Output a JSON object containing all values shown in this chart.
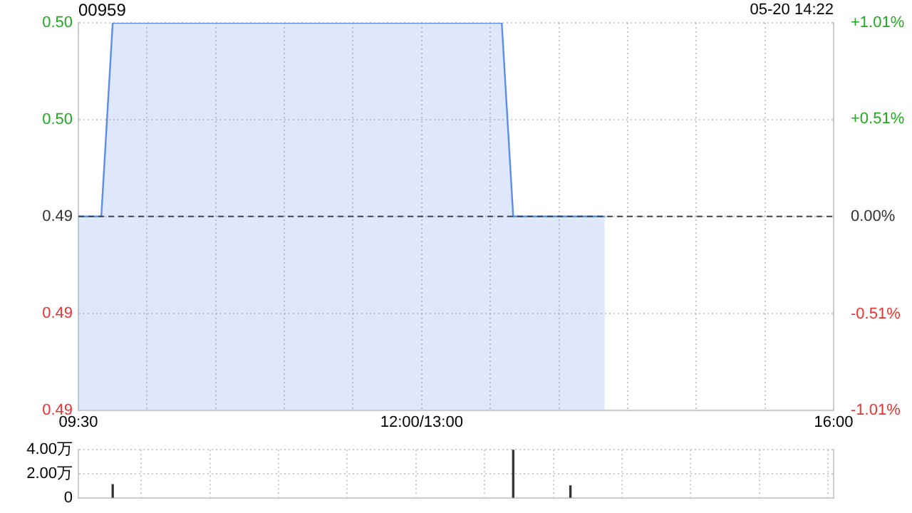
{
  "chart_data": [
    {
      "type": "area",
      "title": "00959",
      "annotations": [
        "05-20 14:22"
      ],
      "categories": [
        "09:30",
        null,
        null,
        null,
        null,
        null,
        null,
        null,
        null,
        null,
        null,
        null,
        null,
        null,
        null,
        null,
        null,
        null,
        null,
        null,
        null,
        null,
        null,
        null,
        null,
        null,
        null,
        null,
        null,
        null,
        "12:00/13:00",
        null,
        null,
        null,
        null,
        null,
        null,
        null,
        null,
        null,
        null,
        null,
        null,
        null,
        null,
        null,
        null,
        null,
        null,
        null,
        null,
        null,
        null,
        null,
        null,
        null,
        null,
        null,
        null,
        null,
        null,
        null,
        null,
        null,
        null,
        null,
        "16:00"
      ],
      "series": [
        {
          "color": "#5b8ee6",
          "values": [
            0.495,
            0.495,
            0.495,
            0.5,
            0.5,
            0.5,
            0.5,
            0.5,
            0.5,
            0.5,
            0.5,
            0.5,
            0.5,
            0.5,
            0.5,
            0.5,
            0.5,
            0.5,
            0.5,
            0.5,
            0.5,
            0.5,
            0.5,
            0.5,
            0.5,
            0.5,
            0.5,
            0.5,
            0.5,
            0.5,
            0.5,
            0.5,
            0.5,
            0.5,
            0.5,
            0.5,
            0.5,
            0.5,
            0.495,
            0.495,
            0.495,
            0.495,
            0.495,
            0.495,
            0.495,
            0.495,
            0.495,
            null,
            null,
            null,
            null,
            null,
            null,
            null,
            null,
            null,
            null,
            null,
            null,
            null,
            null,
            null,
            null,
            null,
            null,
            null,
            null
          ]
        }
      ],
      "ylim": [
        0.49,
        0.5
      ],
      "yticks": [
        {
          "value": 0.49,
          "label": "0.49"
        },
        {
          "value": 0.4925,
          "label": "0.49"
        },
        {
          "value": 0.495,
          "label": "0.49"
        },
        {
          "value": 0.4975,
          "label": "0.50"
        },
        {
          "value": 0.5,
          "label": "0.50"
        }
      ],
      "y2lim": [
        -1.01,
        1.01
      ],
      "y2ticks": [
        {
          "value": -1.01,
          "label": "-1.01%"
        },
        {
          "value": -0.51,
          "label": "-0.51%"
        },
        {
          "value": 0,
          "label": "0.00%"
        },
        {
          "value": 0.51,
          "label": "+0.51%"
        },
        {
          "value": 1.01,
          "label": "+1.01%"
        }
      ],
      "ref_lines": [
        {
          "axis": "y",
          "value": 0.495,
          "color": "#444444",
          "line_style": "dashed"
        }
      ],
      "grid": true,
      "legend": false
    },
    {
      "type": "bar",
      "categories": [
        null,
        null,
        null,
        null,
        null,
        null,
        null,
        null,
        null,
        null,
        null,
        null,
        null,
        null,
        null,
        null,
        null,
        null,
        null,
        null,
        null,
        null,
        null,
        null,
        null,
        null,
        null,
        null,
        null,
        null,
        null,
        null,
        null,
        null,
        null,
        null,
        null,
        null,
        null,
        null,
        null,
        null,
        null,
        null,
        null,
        null,
        null,
        null,
        null,
        null,
        null,
        null,
        null,
        null,
        null,
        null,
        null,
        null,
        null,
        null,
        null,
        null,
        null,
        null,
        null,
        null,
        null
      ],
      "series": [
        {
          "color": "#333333",
          "values": [
            null,
            null,
            null,
            1.1,
            null,
            null,
            null,
            null,
            null,
            null,
            null,
            null,
            null,
            null,
            null,
            null,
            null,
            null,
            null,
            null,
            null,
            null,
            null,
            null,
            null,
            null,
            null,
            null,
            null,
            null,
            null,
            null,
            null,
            null,
            null,
            null,
            null,
            null,
            4.0,
            null,
            null,
            null,
            null,
            1.0,
            null,
            null,
            null,
            null,
            null,
            null,
            null,
            null,
            null,
            null,
            null,
            null,
            null,
            null,
            null,
            null,
            null,
            null,
            null,
            null,
            null,
            null,
            null
          ]
        }
      ],
      "ylim": [
        0,
        4
      ],
      "yticks": [
        0,
        {
          "value": 2,
          "label": "2.00万"
        },
        {
          "value": 4,
          "label": "4.00万"
        }
      ],
      "tick_labels": "y",
      "grid": true,
      "legend": false
    }
  ]
}
